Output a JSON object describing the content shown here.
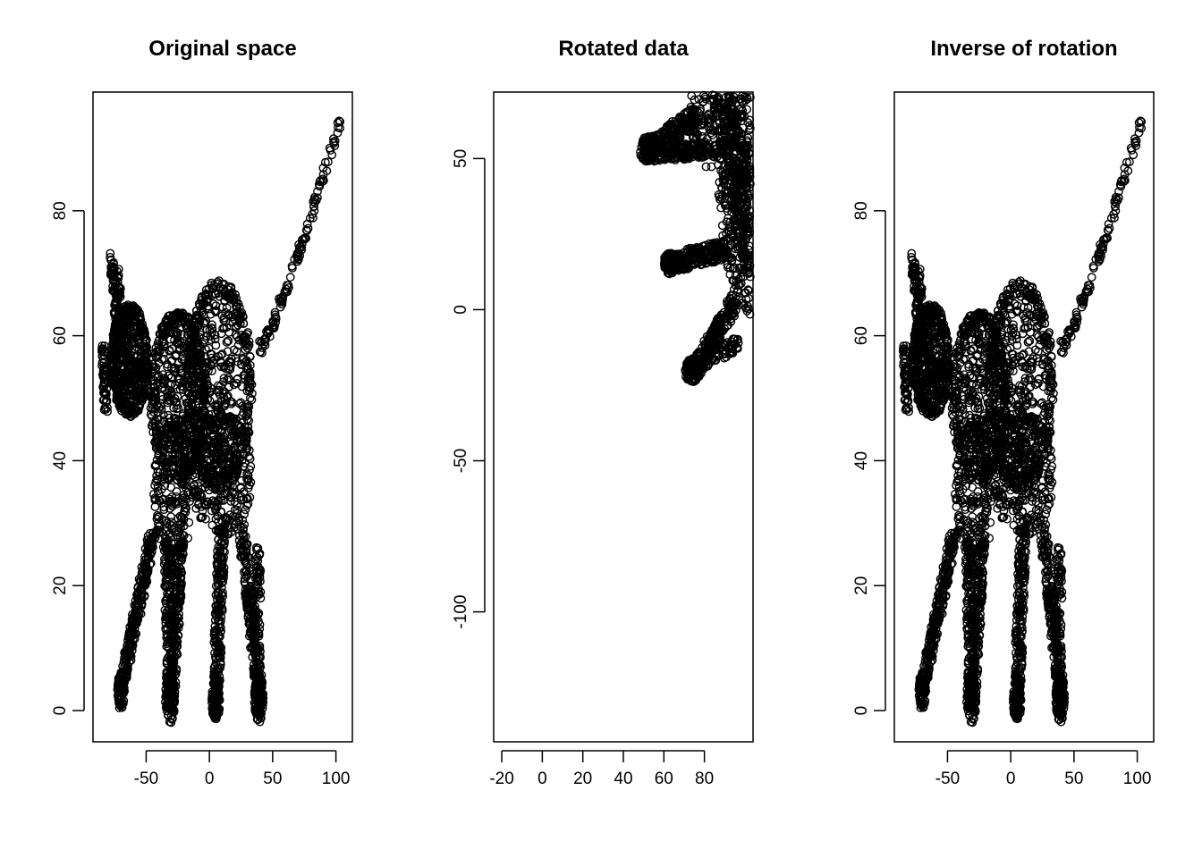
{
  "chart_data": [
    {
      "type": "scatter",
      "title": "Original space",
      "xlabel": "",
      "ylabel": "",
      "xlim": [
        -92,
        113
      ],
      "ylim": [
        -5,
        99
      ],
      "x_ticks": [
        "-50",
        "0",
        "50",
        "100"
      ],
      "x_tick_values": [
        -50,
        0,
        50,
        100
      ],
      "y_ticks": [
        "0",
        "20",
        "40",
        "60",
        "80"
      ],
      "y_tick_values": [
        0,
        20,
        40,
        60,
        80
      ],
      "marker": "open-circle",
      "grid": false,
      "legend": "none",
      "shape": "cat",
      "point_color": "#000000"
    },
    {
      "type": "scatter",
      "title": "Rotated data",
      "xlabel": "",
      "ylabel": "",
      "xlim": [
        -24,
        104
      ],
      "ylim": [
        -143,
        72
      ],
      "x_ticks": [
        "-20",
        "0",
        "20",
        "40",
        "60",
        "80"
      ],
      "x_tick_values": [
        -20,
        0,
        20,
        40,
        60,
        80
      ],
      "y_ticks": [
        "-100",
        "-50",
        "0",
        "50"
      ],
      "y_tick_values": [
        -100,
        -50,
        0,
        50
      ],
      "marker": "open-circle",
      "grid": false,
      "legend": "none",
      "shape": "cat-rotated",
      "point_color": "#000000"
    },
    {
      "type": "scatter",
      "title": "Inverse of rotation",
      "xlabel": "",
      "ylabel": "",
      "xlim": [
        -92,
        113
      ],
      "ylim": [
        -5,
        99
      ],
      "x_ticks": [
        "-50",
        "0",
        "50",
        "100"
      ],
      "x_tick_values": [
        -50,
        0,
        50,
        100
      ],
      "y_ticks": [
        "0",
        "20",
        "40",
        "60",
        "80"
      ],
      "y_tick_values": [
        0,
        20,
        40,
        60,
        80
      ],
      "marker": "open-circle",
      "grid": false,
      "legend": "none",
      "shape": "cat",
      "point_color": "#000000"
    }
  ]
}
